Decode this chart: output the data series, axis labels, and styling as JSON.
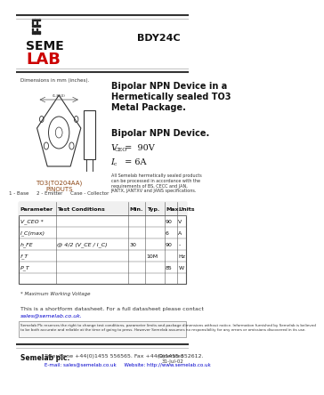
{
  "title": "BDY24C",
  "company": "SEME\nLAB",
  "company_seme": "SEME",
  "company_lab": "LAB",
  "dim_label": "Dimensions in mm (inches).",
  "header_title1": "Bipolar NPN Device in a",
  "header_title2": "Hermetically sealed TO3",
  "header_title3": "Metal Package.",
  "sub_title": "Bipolar NPN Device.",
  "vceo_line": "V",
  "vceo_sub": "CEO",
  "vceo_val": " =  90V",
  "ic_line": "I",
  "ic_sub": "c",
  "ic_val": " = 6A",
  "sealed_text": "All Semelab hermetically sealed products\ncan be processed in accordance with the\nrequirements of BS, CECC and JAN,\nJANTX, JANTXV and JANS specifications.",
  "pinouts_label": "TO3(TO204AA)\nPINOUTS",
  "pinouts_desc": "1 - Base     2 - Emitter     Case - Collector",
  "table_headers": [
    "Parameter",
    "Test Conditions",
    "Min.",
    "Typ.",
    "Max.",
    "Units"
  ],
  "table_rows": [
    [
      "V_CEO *",
      "",
      "",
      "",
      "90",
      "V"
    ],
    [
      "I_C(max)",
      "",
      "",
      "",
      "6",
      "A"
    ],
    [
      "h_FE",
      "@ 4/2 (V_CE / I_C)",
      "30",
      "",
      "90",
      "-"
    ],
    [
      "f_T",
      "",
      "",
      "10M",
      "",
      "Hz"
    ],
    [
      "P_T",
      "",
      "",
      "",
      "85",
      "W"
    ]
  ],
  "footnote": "* Maximum Working Voltage",
  "shortform_text": "This is a shortform datasheet. For a full datasheet please contact sales@semelab.co.uk.",
  "disclaimer": "Semelab Plc reserves the right to change test conditions, parameter limits and package dimensions without notice. Information furnished by Semelab is believed\nto be both accurate and reliable at the time of going to press. However Semelab assumes no responsibility for any errors or omissions discovered in its use.",
  "footer_company": "Semelab plc.",
  "footer_tel": "Telephone +44(0)1455 556565. Fax +44(0)1455 552612.",
  "footer_email": "E-mail: sales@semelab.co.uk     Website: http://www.semelab.co.uk",
  "footer_generated": "Generated\n31-Jul-02",
  "bg_color": "#ffffff",
  "border_color": "#888888",
  "red_color": "#cc0000",
  "black_color": "#000000",
  "table_border_color": "#555555"
}
